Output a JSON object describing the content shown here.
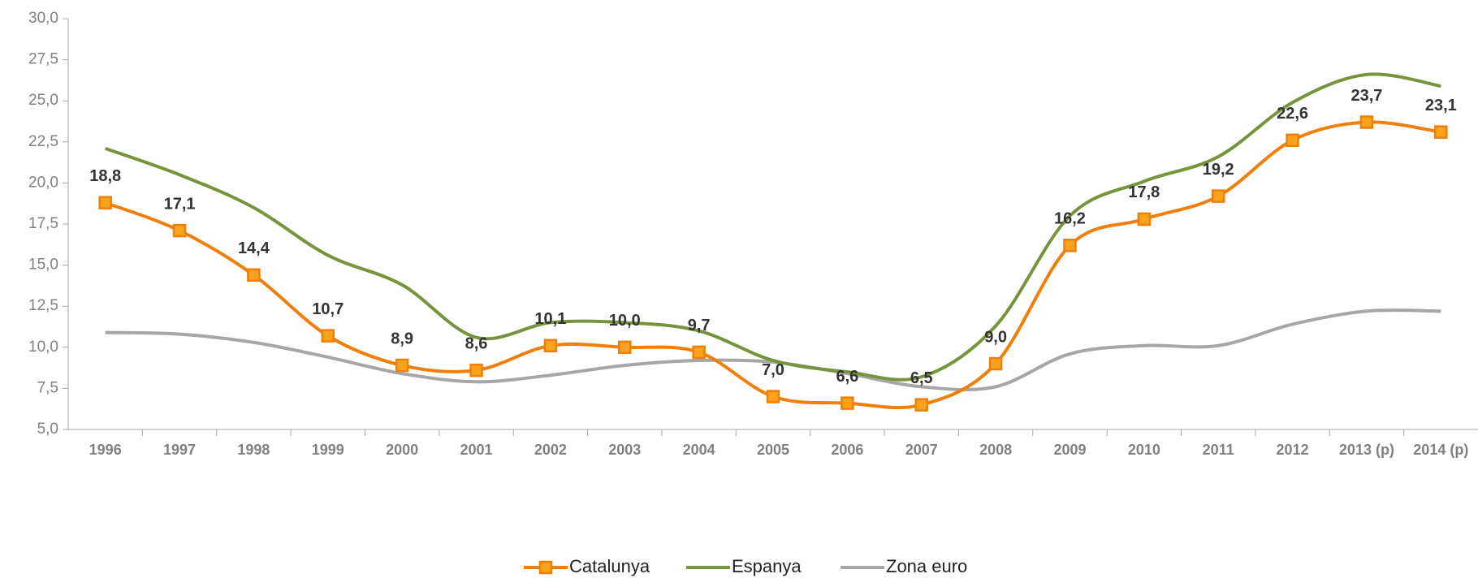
{
  "chart_data": {
    "type": "line",
    "categories": [
      "1996",
      "1997",
      "1998",
      "1999",
      "2000",
      "2001",
      "2002",
      "2003",
      "2004",
      "2005",
      "2006",
      "2007",
      "2008",
      "2009",
      "2010",
      "2011",
      "2012",
      "2013 (p)",
      "2014 (p)"
    ],
    "series": [
      {
        "name": "Catalunya",
        "color": "#f07f09",
        "marker": "square",
        "values": [
          18.8,
          17.1,
          14.4,
          10.7,
          8.9,
          8.6,
          10.1,
          10.0,
          9.7,
          7.0,
          6.6,
          6.5,
          9.0,
          16.2,
          17.8,
          19.2,
          22.6,
          23.7,
          23.1
        ],
        "value_labels": [
          "18,8",
          "17,1",
          "14,4",
          "10,7",
          "8,9",
          "8,6",
          "10,1",
          "10,0",
          "9,7",
          "7,0",
          "6,6",
          "6,5",
          "9,0",
          "16,2",
          "17,8",
          "19,2",
          "22,6",
          "23,7",
          "23,1"
        ]
      },
      {
        "name": "Espanya",
        "color": "#77933c",
        "values": [
          22.1,
          20.5,
          18.5,
          15.6,
          13.8,
          10.6,
          11.5,
          11.5,
          11.0,
          9.2,
          8.5,
          8.2,
          11.3,
          18.0,
          20.1,
          21.6,
          24.9,
          26.6,
          25.9
        ]
      },
      {
        "name": "Zona euro",
        "color": "#a6a6a6",
        "values": [
          10.9,
          10.8,
          10.3,
          9.4,
          8.4,
          7.9,
          8.3,
          8.9,
          9.2,
          9.1,
          8.4,
          7.6,
          7.6,
          9.6,
          10.1,
          10.1,
          11.4,
          12.2,
          12.2
        ]
      }
    ],
    "ylim": [
      5,
      30
    ],
    "yticks": [
      {
        "value": 5,
        "label": "5,0"
      },
      {
        "value": 7.5,
        "label": "7,5"
      },
      {
        "value": 10,
        "label": "10,0"
      },
      {
        "value": 12.5,
        "label": "12,5"
      },
      {
        "value": 15,
        "label": "15,0"
      },
      {
        "value": 17.5,
        "label": "17,5"
      },
      {
        "value": 20,
        "label": "20,0"
      },
      {
        "value": 22.5,
        "label": "22,5"
      },
      {
        "value": 25,
        "label": "25,0"
      },
      {
        "value": 27.5,
        "label": "27,5"
      },
      {
        "value": 30,
        "label": "30,0"
      }
    ],
    "grid": false,
    "legend": "bottom",
    "smooth": true
  }
}
